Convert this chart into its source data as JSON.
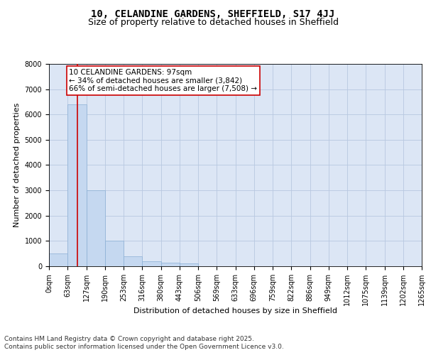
{
  "title1": "10, CELANDINE GARDENS, SHEFFIELD, S17 4JJ",
  "title2": "Size of property relative to detached houses in Sheffield",
  "xlabel": "Distribution of detached houses by size in Sheffield",
  "ylabel": "Number of detached properties",
  "annotation_line1": "10 CELANDINE GARDENS: 97sqm",
  "annotation_line2": "← 34% of detached houses are smaller (3,842)",
  "annotation_line3": "66% of semi-detached houses are larger (7,508) →",
  "bin_edges": [
    0,
    63,
    127,
    190,
    253,
    316,
    380,
    443,
    506,
    569,
    633,
    696,
    759,
    822,
    886,
    949,
    1012,
    1075,
    1139,
    1202,
    1265
  ],
  "bin_counts": [
    500,
    6400,
    3000,
    1000,
    400,
    200,
    150,
    100,
    0,
    0,
    0,
    0,
    0,
    0,
    0,
    0,
    0,
    0,
    0,
    0
  ],
  "bar_color": "#c5d8f0",
  "bar_edge_color": "#8aafd4",
  "bar_edge_width": 0.5,
  "vline_color": "#cc0000",
  "vline_x": 97,
  "ylim": [
    0,
    8000
  ],
  "yticks": [
    0,
    1000,
    2000,
    3000,
    4000,
    5000,
    6000,
    7000,
    8000
  ],
  "grid_color": "#b8c8e0",
  "bg_color": "#dce6f5",
  "annotation_box_color": "#cc0000",
  "annotation_bg": "#ffffff",
  "footer_line1": "Contains HM Land Registry data © Crown copyright and database right 2025.",
  "footer_line2": "Contains public sector information licensed under the Open Government Licence v3.0.",
  "title_fontsize": 10,
  "subtitle_fontsize": 9,
  "axis_label_fontsize": 8,
  "tick_fontsize": 7,
  "annotation_fontsize": 7.5,
  "footer_fontsize": 6.5
}
